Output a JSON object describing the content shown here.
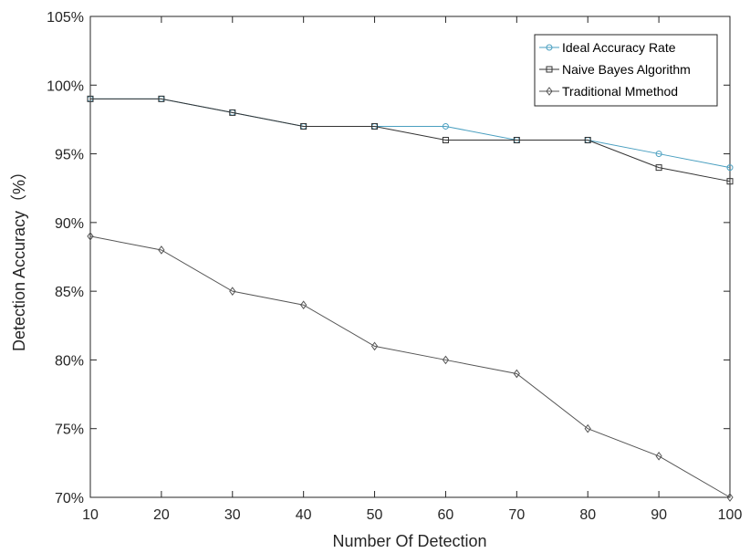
{
  "chart_data": {
    "type": "line",
    "title": "",
    "xlabel": "Number Of Detection",
    "ylabel": "Detection Accuracy（%）",
    "xlim": [
      10,
      100
    ],
    "ylim": [
      70,
      105
    ],
    "x": [
      10,
      20,
      30,
      40,
      50,
      60,
      70,
      80,
      90,
      100
    ],
    "x_ticks": [
      "10",
      "20",
      "30",
      "40",
      "50",
      "60",
      "70",
      "80",
      "90",
      "100"
    ],
    "y_ticks": [
      70,
      75,
      80,
      85,
      90,
      95,
      100,
      105
    ],
    "y_tick_labels": [
      "70%",
      "75%",
      "80%",
      "85%",
      "90%",
      "95%",
      "100%",
      "105%"
    ],
    "grid": false,
    "legend_position": "top-right",
    "series": [
      {
        "name": "Ideal Accuracy Rate",
        "color": "#4a9fc0",
        "marker": "circle",
        "values": [
          99,
          99,
          98,
          97,
          97,
          97,
          96,
          96,
          95,
          94
        ]
      },
      {
        "name": "Naive Bayes Algorithm",
        "color": "#333333",
        "marker": "square",
        "values": [
          99,
          99,
          98,
          97,
          97,
          96,
          96,
          96,
          94,
          93
        ]
      },
      {
        "name": "Traditional Mmethod",
        "color": "#555555",
        "marker": "diamond",
        "values": [
          89,
          88,
          85,
          84,
          81,
          80,
          79,
          75,
          73,
          70
        ]
      }
    ]
  }
}
